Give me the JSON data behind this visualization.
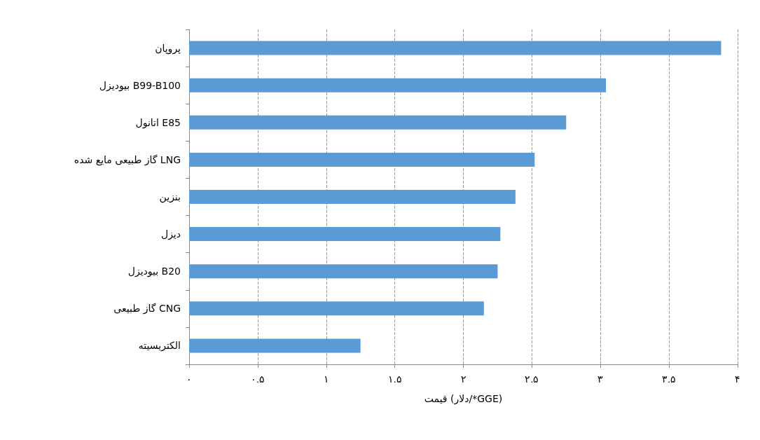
{
  "chart_data": {
    "type": "bar",
    "orientation": "horizontal",
    "xlabel": "قیمت (دلار/*GGE)",
    "categories": [
      "پروپان",
      "بیودیزل B99-B100",
      "اتانول E85",
      "گاز طبیعی مایع شده LNG",
      "بنزین",
      "دیزل",
      "بیودیزل B20",
      "گاز طبیعی CNG",
      "الکتریسیته"
    ],
    "values": [
      3.88,
      3.04,
      2.75,
      2.52,
      2.38,
      2.27,
      2.25,
      2.15,
      1.25
    ],
    "color": "#5b9bd5",
    "xlim": [
      0,
      4
    ],
    "xticks": [
      {
        "value": 0,
        "label": "۰"
      },
      {
        "value": 0.5,
        "label": "۰.۵"
      },
      {
        "value": 1,
        "label": "۱"
      },
      {
        "value": 1.5,
        "label": "۱.۵"
      },
      {
        "value": 2,
        "label": "۲"
      },
      {
        "value": 2.5,
        "label": "۲.۵"
      },
      {
        "value": 3,
        "label": "۳"
      },
      {
        "value": 3.5,
        "label": "۳.۵"
      },
      {
        "value": 4,
        "label": "۴"
      }
    ],
    "grid": "x",
    "line_style": "dashed"
  }
}
